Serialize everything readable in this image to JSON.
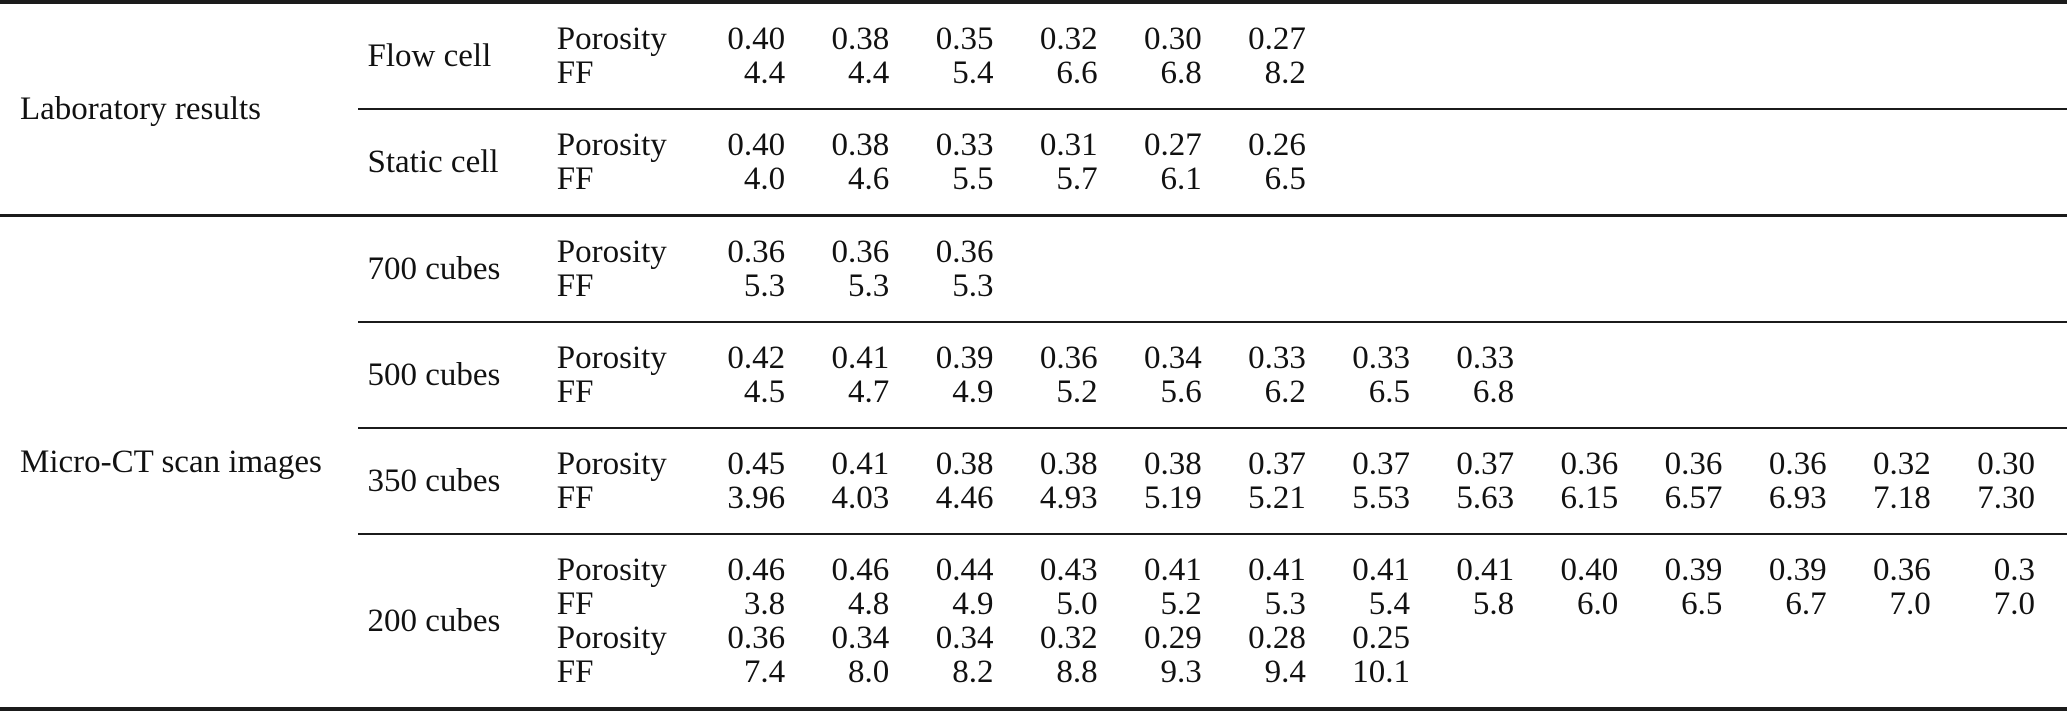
{
  "table": {
    "num_data_columns": 13,
    "sections": [
      {
        "label": "Laboratory results",
        "groups": [
          {
            "label": "Flow cell",
            "rows": [
              {
                "param": "Porosity",
                "values": [
                  "0.40",
                  "0.38",
                  "0.35",
                  "0.32",
                  "0.30",
                  "0.27"
                ]
              },
              {
                "param": "FF",
                "values": [
                  "4.4",
                  "4.4",
                  "5.4",
                  "6.6",
                  "6.8",
                  "8.2"
                ]
              }
            ]
          },
          {
            "label": "Static cell",
            "rows": [
              {
                "param": "Porosity",
                "values": [
                  "0.40",
                  "0.38",
                  "0.33",
                  "0.31",
                  "0.27",
                  "0.26"
                ]
              },
              {
                "param": "FF",
                "values": [
                  "4.0",
                  "4.6",
                  "5.5",
                  "5.7",
                  "6.1",
                  "6.5"
                ]
              }
            ]
          }
        ]
      },
      {
        "label": "Micro-CT scan images",
        "groups": [
          {
            "label": "700 cubes",
            "rows": [
              {
                "param": "Porosity",
                "values": [
                  "0.36",
                  "0.36",
                  "0.36"
                ]
              },
              {
                "param": "FF",
                "values": [
                  "5.3",
                  "5.3",
                  "5.3"
                ]
              }
            ]
          },
          {
            "label": "500 cubes",
            "rows": [
              {
                "param": "Porosity",
                "values": [
                  "0.42",
                  "0.41",
                  "0.39",
                  "0.36",
                  "0.34",
                  "0.33",
                  "0.33",
                  "0.33"
                ]
              },
              {
                "param": "FF",
                "values": [
                  "4.5",
                  "4.7",
                  "4.9",
                  "5.2",
                  "5.6",
                  "6.2",
                  "6.5",
                  "6.8"
                ]
              }
            ]
          },
          {
            "label": "350 cubes",
            "rows": [
              {
                "param": "Porosity",
                "values": [
                  "0.45",
                  "0.41",
                  "0.38",
                  "0.38",
                  "0.38",
                  "0.37",
                  "0.37",
                  "0.37",
                  "0.36",
                  "0.36",
                  "0.36",
                  "0.32",
                  "0.30"
                ]
              },
              {
                "param": "FF",
                "values": [
                  "3.96",
                  "4.03",
                  "4.46",
                  "4.93",
                  "5.19",
                  "5.21",
                  "5.53",
                  "5.63",
                  "6.15",
                  "6.57",
                  "6.93",
                  "7.18",
                  "7.30"
                ]
              }
            ]
          },
          {
            "label": "200 cubes",
            "rows": [
              {
                "param": "Porosity",
                "values": [
                  "0.46",
                  "0.46",
                  "0.44",
                  "0.43",
                  "0.41",
                  "0.41",
                  "0.41",
                  "0.41",
                  "0.40",
                  "0.39",
                  "0.39",
                  "0.36",
                  "0.3"
                ]
              },
              {
                "param": "FF",
                "values": [
                  "3.8",
                  "4.8",
                  "4.9",
                  "5.0",
                  "5.2",
                  "5.3",
                  "5.4",
                  "5.8",
                  "6.0",
                  "6.5",
                  "6.7",
                  "7.0",
                  "7.0"
                ]
              },
              {
                "param": "Porosity",
                "values": [
                  "0.36",
                  "0.34",
                  "0.34",
                  "0.32",
                  "0.29",
                  "0.28",
                  "0.25"
                ]
              },
              {
                "param": "FF",
                "values": [
                  "7.4",
                  "8.0",
                  "8.2",
                  "8.8",
                  "9.3",
                  "9.4",
                  "10.1"
                ]
              }
            ]
          }
        ]
      }
    ]
  }
}
